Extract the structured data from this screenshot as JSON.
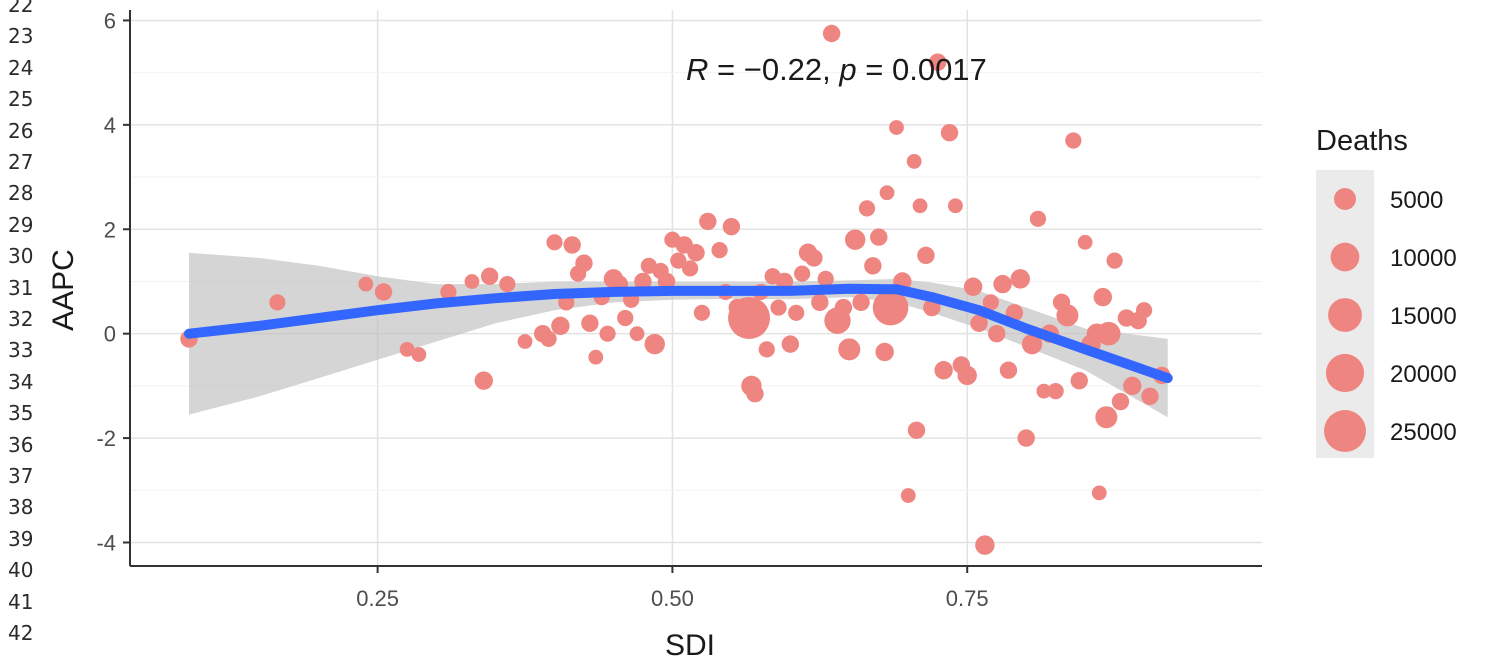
{
  "line_numbers": [
    "22",
    "23",
    "24",
    "25",
    "26",
    "27",
    "28",
    "29",
    "30",
    "31",
    "32",
    "33",
    "34",
    "35",
    "36",
    "37",
    "38",
    "39",
    "40",
    "41",
    "42"
  ],
  "colors": {
    "points": "#ee8580",
    "smooth_line": "#3366ff",
    "ribbon": "#bfbfbf",
    "grid": "#e3e3e3",
    "axis": "#333333"
  },
  "chart_data": {
    "type": "scatter",
    "title": "",
    "xlabel": "SDI",
    "ylabel": "AAPC",
    "xlim": [
      0.04,
      1.0
    ],
    "ylim": [
      -4.45,
      6.2
    ],
    "x_ticks": [
      0.25,
      0.5,
      0.75
    ],
    "x_tick_labels": [
      "0.25",
      "0.50",
      "0.75"
    ],
    "y_ticks": [
      -4,
      -2,
      0,
      2,
      4,
      6
    ],
    "y_tick_labels": [
      "-4",
      "-2",
      "0",
      "2",
      "4",
      "6"
    ],
    "grid": true,
    "annotation": {
      "text_r": "R",
      "text_mid": " = −0.22, ",
      "text_p": "p",
      "text_tail": " = 0.0017",
      "x": 0.5,
      "y": 5.0
    },
    "legend": {
      "title": "Deaths",
      "position": "right",
      "entries": [
        {
          "label": "5000",
          "size": 5000
        },
        {
          "label": "10000",
          "size": 10000
        },
        {
          "label": "15000",
          "size": 15000
        },
        {
          "label": "20000",
          "size": 20000
        },
        {
          "label": "25000",
          "size": 25000
        }
      ]
    },
    "smooth": {
      "x": [
        0.09,
        0.15,
        0.2,
        0.25,
        0.3,
        0.35,
        0.4,
        0.45,
        0.5,
        0.55,
        0.6,
        0.65,
        0.69,
        0.72,
        0.76,
        0.8,
        0.85,
        0.92
      ],
      "y": [
        0.0,
        0.15,
        0.3,
        0.45,
        0.58,
        0.68,
        0.76,
        0.8,
        0.82,
        0.82,
        0.82,
        0.86,
        0.85,
        0.7,
        0.45,
        0.1,
        -0.3,
        -0.85
      ],
      "lower": [
        -1.55,
        -1.2,
        -0.85,
        -0.5,
        -0.15,
        0.2,
        0.45,
        0.6,
        0.65,
        0.67,
        0.66,
        0.7,
        0.6,
        0.4,
        0.1,
        -0.25,
        -0.7,
        -1.6
      ],
      "upper": [
        1.55,
        1.45,
        1.3,
        1.1,
        0.95,
        0.95,
        1.0,
        1.0,
        1.0,
        1.0,
        1.0,
        1.02,
        1.05,
        0.98,
        0.82,
        0.5,
        0.1,
        -0.1
      ]
    },
    "points": [
      {
        "x": 0.09,
        "y": -0.1,
        "deaths": 2500
      },
      {
        "x": 0.165,
        "y": 0.6,
        "deaths": 2000
      },
      {
        "x": 0.24,
        "y": 0.95,
        "deaths": 1500
      },
      {
        "x": 0.255,
        "y": 0.8,
        "deaths": 2500
      },
      {
        "x": 0.275,
        "y": -0.3,
        "deaths": 1500
      },
      {
        "x": 0.285,
        "y": -0.4,
        "deaths": 1500
      },
      {
        "x": 0.31,
        "y": 0.8,
        "deaths": 2000
      },
      {
        "x": 0.33,
        "y": 1.0,
        "deaths": 1500
      },
      {
        "x": 0.34,
        "y": -0.9,
        "deaths": 3000
      },
      {
        "x": 0.345,
        "y": 1.1,
        "deaths": 2500
      },
      {
        "x": 0.36,
        "y": 0.95,
        "deaths": 2000
      },
      {
        "x": 0.375,
        "y": -0.15,
        "deaths": 1500
      },
      {
        "x": 0.39,
        "y": 0.0,
        "deaths": 2500
      },
      {
        "x": 0.395,
        "y": -0.1,
        "deaths": 2000
      },
      {
        "x": 0.4,
        "y": 1.75,
        "deaths": 2000
      },
      {
        "x": 0.405,
        "y": 0.15,
        "deaths": 3000
      },
      {
        "x": 0.41,
        "y": 0.6,
        "deaths": 2000
      },
      {
        "x": 0.415,
        "y": 1.7,
        "deaths": 2500
      },
      {
        "x": 0.42,
        "y": 1.15,
        "deaths": 2000
      },
      {
        "x": 0.425,
        "y": 1.35,
        "deaths": 2500
      },
      {
        "x": 0.43,
        "y": 0.2,
        "deaths": 2500
      },
      {
        "x": 0.435,
        "y": -0.45,
        "deaths": 1500
      },
      {
        "x": 0.44,
        "y": 0.7,
        "deaths": 2000
      },
      {
        "x": 0.445,
        "y": 0.0,
        "deaths": 2000
      },
      {
        "x": 0.45,
        "y": 1.05,
        "deaths": 3500
      },
      {
        "x": 0.455,
        "y": 0.95,
        "deaths": 2500
      },
      {
        "x": 0.46,
        "y": 0.3,
        "deaths": 2000
      },
      {
        "x": 0.465,
        "y": 0.65,
        "deaths": 2000
      },
      {
        "x": 0.47,
        "y": 0.0,
        "deaths": 1500
      },
      {
        "x": 0.475,
        "y": 1.0,
        "deaths": 2500
      },
      {
        "x": 0.48,
        "y": 1.3,
        "deaths": 2000
      },
      {
        "x": 0.485,
        "y": -0.2,
        "deaths": 4000
      },
      {
        "x": 0.49,
        "y": 1.2,
        "deaths": 2000
      },
      {
        "x": 0.495,
        "y": 1.0,
        "deaths": 2500
      },
      {
        "x": 0.5,
        "y": 1.8,
        "deaths": 2000
      },
      {
        "x": 0.505,
        "y": 1.4,
        "deaths": 2000
      },
      {
        "x": 0.51,
        "y": 1.7,
        "deaths": 2500
      },
      {
        "x": 0.515,
        "y": 1.25,
        "deaths": 2000
      },
      {
        "x": 0.52,
        "y": 1.55,
        "deaths": 2500
      },
      {
        "x": 0.525,
        "y": 0.4,
        "deaths": 2000
      },
      {
        "x": 0.53,
        "y": 2.15,
        "deaths": 2500
      },
      {
        "x": 0.54,
        "y": 1.6,
        "deaths": 2000
      },
      {
        "x": 0.545,
        "y": 0.8,
        "deaths": 2000
      },
      {
        "x": 0.55,
        "y": 2.05,
        "deaths": 2500
      },
      {
        "x": 0.555,
        "y": 0.5,
        "deaths": 2500
      },
      {
        "x": 0.565,
        "y": 0.3,
        "deaths": 25000
      },
      {
        "x": 0.567,
        "y": -1.0,
        "deaths": 4000
      },
      {
        "x": 0.57,
        "y": -1.15,
        "deaths": 2500
      },
      {
        "x": 0.575,
        "y": 0.8,
        "deaths": 2000
      },
      {
        "x": 0.58,
        "y": -0.3,
        "deaths": 2000
      },
      {
        "x": 0.585,
        "y": 1.1,
        "deaths": 2000
      },
      {
        "x": 0.59,
        "y": 0.5,
        "deaths": 2000
      },
      {
        "x": 0.595,
        "y": 1.0,
        "deaths": 2500
      },
      {
        "x": 0.6,
        "y": -0.2,
        "deaths": 2500
      },
      {
        "x": 0.605,
        "y": 0.4,
        "deaths": 2000
      },
      {
        "x": 0.61,
        "y": 1.15,
        "deaths": 2000
      },
      {
        "x": 0.615,
        "y": 1.55,
        "deaths": 3000
      },
      {
        "x": 0.62,
        "y": 1.45,
        "deaths": 2500
      },
      {
        "x": 0.625,
        "y": 0.6,
        "deaths": 2500
      },
      {
        "x": 0.63,
        "y": 1.05,
        "deaths": 2000
      },
      {
        "x": 0.635,
        "y": 5.75,
        "deaths": 2500
      },
      {
        "x": 0.64,
        "y": 0.25,
        "deaths": 8000
      },
      {
        "x": 0.645,
        "y": 0.5,
        "deaths": 2500
      },
      {
        "x": 0.65,
        "y": -0.3,
        "deaths": 5000
      },
      {
        "x": 0.655,
        "y": 1.8,
        "deaths": 4000
      },
      {
        "x": 0.66,
        "y": 0.6,
        "deaths": 2500
      },
      {
        "x": 0.665,
        "y": 2.4,
        "deaths": 2000
      },
      {
        "x": 0.67,
        "y": 1.3,
        "deaths": 2500
      },
      {
        "x": 0.675,
        "y": 1.85,
        "deaths": 2500
      },
      {
        "x": 0.68,
        "y": -0.35,
        "deaths": 3000
      },
      {
        "x": 0.682,
        "y": 2.7,
        "deaths": 1500
      },
      {
        "x": 0.685,
        "y": 0.5,
        "deaths": 17000
      },
      {
        "x": 0.69,
        "y": 3.95,
        "deaths": 1500
      },
      {
        "x": 0.695,
        "y": 1.0,
        "deaths": 3000
      },
      {
        "x": 0.7,
        "y": -3.1,
        "deaths": 1500
      },
      {
        "x": 0.705,
        "y": 3.3,
        "deaths": 1500
      },
      {
        "x": 0.707,
        "y": -1.85,
        "deaths": 2500
      },
      {
        "x": 0.71,
        "y": 2.45,
        "deaths": 1500
      },
      {
        "x": 0.715,
        "y": 1.5,
        "deaths": 2500
      },
      {
        "x": 0.72,
        "y": 0.5,
        "deaths": 2500
      },
      {
        "x": 0.725,
        "y": 5.2,
        "deaths": 2500
      },
      {
        "x": 0.73,
        "y": -0.7,
        "deaths": 3000
      },
      {
        "x": 0.735,
        "y": 3.85,
        "deaths": 2500
      },
      {
        "x": 0.74,
        "y": 2.45,
        "deaths": 1500
      },
      {
        "x": 0.745,
        "y": -0.6,
        "deaths": 2500
      },
      {
        "x": 0.75,
        "y": -0.8,
        "deaths": 3500
      },
      {
        "x": 0.755,
        "y": 0.9,
        "deaths": 3000
      },
      {
        "x": 0.76,
        "y": 0.2,
        "deaths": 2500
      },
      {
        "x": 0.765,
        "y": -4.05,
        "deaths": 3500
      },
      {
        "x": 0.77,
        "y": 0.6,
        "deaths": 2000
      },
      {
        "x": 0.775,
        "y": 0.0,
        "deaths": 2500
      },
      {
        "x": 0.78,
        "y": 0.95,
        "deaths": 3000
      },
      {
        "x": 0.785,
        "y": -0.7,
        "deaths": 2500
      },
      {
        "x": 0.79,
        "y": 0.4,
        "deaths": 2500
      },
      {
        "x": 0.795,
        "y": 1.05,
        "deaths": 3500
      },
      {
        "x": 0.8,
        "y": -2.0,
        "deaths": 2500
      },
      {
        "x": 0.805,
        "y": -0.2,
        "deaths": 4000
      },
      {
        "x": 0.81,
        "y": 2.2,
        "deaths": 2000
      },
      {
        "x": 0.815,
        "y": -1.1,
        "deaths": 1500
      },
      {
        "x": 0.82,
        "y": 0.0,
        "deaths": 3000
      },
      {
        "x": 0.825,
        "y": -1.1,
        "deaths": 2000
      },
      {
        "x": 0.83,
        "y": 0.6,
        "deaths": 2500
      },
      {
        "x": 0.835,
        "y": 0.35,
        "deaths": 5000
      },
      {
        "x": 0.84,
        "y": 3.7,
        "deaths": 2000
      },
      {
        "x": 0.845,
        "y": -0.9,
        "deaths": 2500
      },
      {
        "x": 0.85,
        "y": 1.75,
        "deaths": 1500
      },
      {
        "x": 0.855,
        "y": -0.2,
        "deaths": 3500
      },
      {
        "x": 0.86,
        "y": 0.0,
        "deaths": 4000
      },
      {
        "x": 0.862,
        "y": -3.05,
        "deaths": 1500
      },
      {
        "x": 0.865,
        "y": 0.7,
        "deaths": 3000
      },
      {
        "x": 0.868,
        "y": -1.6,
        "deaths": 5000
      },
      {
        "x": 0.87,
        "y": 0.0,
        "deaths": 6000
      },
      {
        "x": 0.875,
        "y": 1.4,
        "deaths": 2000
      },
      {
        "x": 0.88,
        "y": -1.3,
        "deaths": 2500
      },
      {
        "x": 0.885,
        "y": 0.3,
        "deaths": 2500
      },
      {
        "x": 0.89,
        "y": -1.0,
        "deaths": 3000
      },
      {
        "x": 0.895,
        "y": 0.25,
        "deaths": 2500
      },
      {
        "x": 0.9,
        "y": 0.45,
        "deaths": 2000
      },
      {
        "x": 0.905,
        "y": -1.2,
        "deaths": 2500
      },
      {
        "x": 0.915,
        "y": -0.8,
        "deaths": 2500
      }
    ]
  }
}
